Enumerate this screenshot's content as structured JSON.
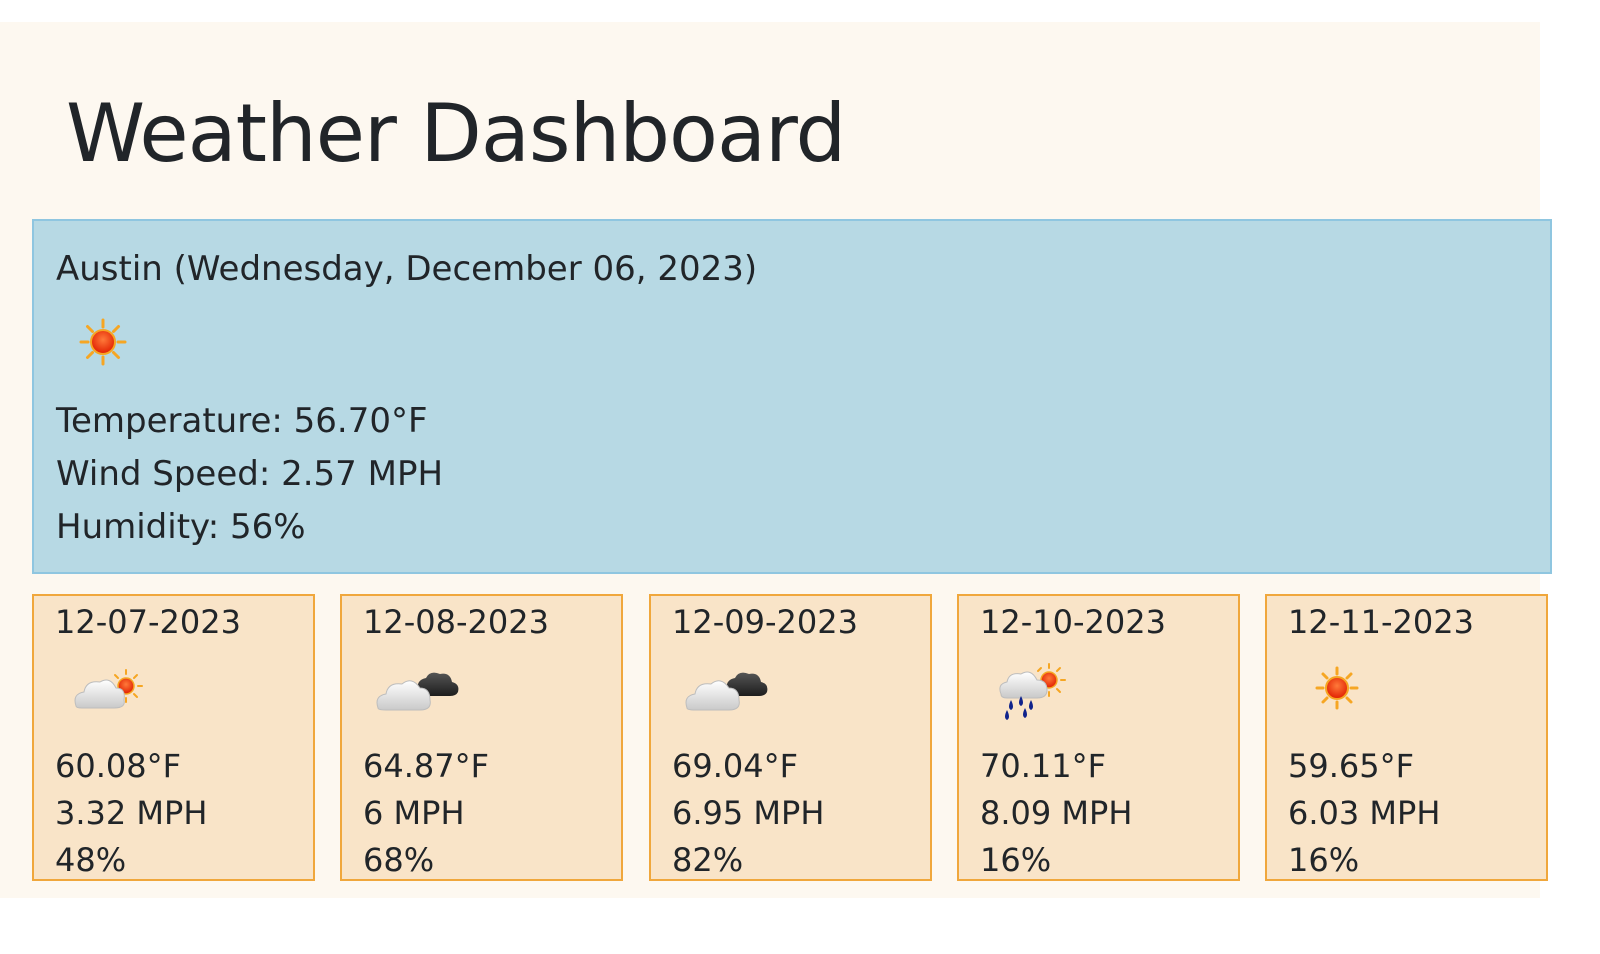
{
  "title": "Weather Dashboard",
  "current": {
    "header": "Austin (Wednesday, December 06, 2023)",
    "icon": "sun-icon",
    "temperature": "Temperature: 56.70°F",
    "wind": "Wind Speed: 2.57 MPH",
    "humidity": "Humidity: 56%"
  },
  "forecast": [
    {
      "date": "12-07-2023",
      "icon": "partly-sunny-icon",
      "temp": "60.08°F",
      "wind": "3.32 MPH",
      "humidity": "48%"
    },
    {
      "date": "12-08-2023",
      "icon": "cloudy-icon",
      "temp": "64.87°F",
      "wind": "6 MPH",
      "humidity": "68%"
    },
    {
      "date": "12-09-2023",
      "icon": "cloudy-icon",
      "temp": "69.04°F",
      "wind": "6.95 MPH",
      "humidity": "82%"
    },
    {
      "date": "12-10-2023",
      "icon": "rain-sun-icon",
      "temp": "70.11°F",
      "wind": "8.09 MPH",
      "humidity": "16%"
    },
    {
      "date": "12-11-2023",
      "icon": "sun-icon",
      "temp": "59.65°F",
      "wind": "6.03 MPH",
      "humidity": "16%"
    }
  ],
  "colors": {
    "page_background": "#fdf8f0",
    "current_background": "#b7d9e4",
    "current_border": "#8fc6e0",
    "forecast_background": "#f9e4c8",
    "forecast_border": "#f0a73c"
  }
}
